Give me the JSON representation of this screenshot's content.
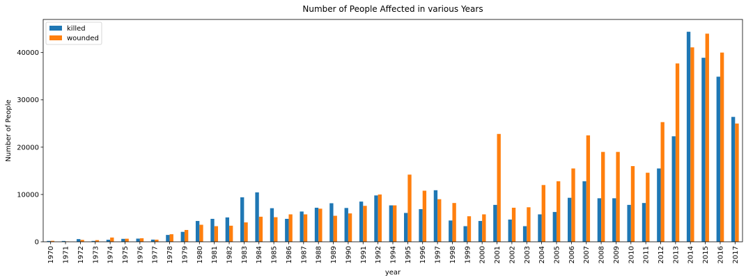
{
  "chart_data": {
    "type": "bar",
    "title": "Number of People Affected in various Years",
    "xlabel": "year",
    "ylabel": "Number of People",
    "ylim": [
      0,
      47000
    ],
    "yticks": [
      0,
      10000,
      20000,
      30000,
      40000
    ],
    "legend_position": "top-left",
    "grid": false,
    "categories": [
      "1970",
      "1971",
      "1972",
      "1973",
      "1974",
      "1975",
      "1976",
      "1977",
      "1978",
      "1979",
      "1980",
      "1981",
      "1982",
      "1983",
      "1984",
      "1985",
      "1986",
      "1987",
      "1988",
      "1989",
      "1990",
      "1991",
      "1992",
      "1994",
      "1995",
      "1996",
      "1997",
      "1998",
      "1999",
      "2000",
      "2001",
      "2002",
      "2003",
      "2004",
      "2005",
      "2006",
      "2007",
      "2008",
      "2009",
      "2010",
      "2011",
      "2012",
      "2013",
      "2014",
      "2015",
      "2016",
      "2017"
    ],
    "series": [
      {
        "name": "killed",
        "color": "#1f77b4",
        "values": [
          170,
          170,
          570,
          180,
          430,
          620,
          670,
          460,
          1450,
          2100,
          4400,
          4850,
          5150,
          9400,
          10450,
          7100,
          4850,
          6400,
          7200,
          8150,
          7150,
          8500,
          9800,
          7700,
          6100,
          6900,
          10900,
          4500,
          3300,
          4400,
          7800,
          4700,
          3300,
          5800,
          6300,
          9300,
          12800,
          9200,
          9200,
          7800,
          8200,
          15500,
          22300,
          44400,
          38900,
          34900,
          26400
        ]
      },
      {
        "name": "wounded",
        "color": "#ff7f0e",
        "values": [
          200,
          80,
          400,
          350,
          900,
          650,
          750,
          450,
          1600,
          2500,
          3600,
          3300,
          3400,
          4100,
          5300,
          5200,
          5800,
          5800,
          7000,
          5500,
          6000,
          7600,
          10000,
          7700,
          14200,
          10800,
          9000,
          8200,
          5400,
          5800,
          22800,
          7200,
          7300,
          12000,
          12800,
          15500,
          22500,
          19000,
          19000,
          16000,
          14600,
          25300,
          37700,
          41100,
          44000,
          40000,
          25000
        ]
      }
    ]
  }
}
